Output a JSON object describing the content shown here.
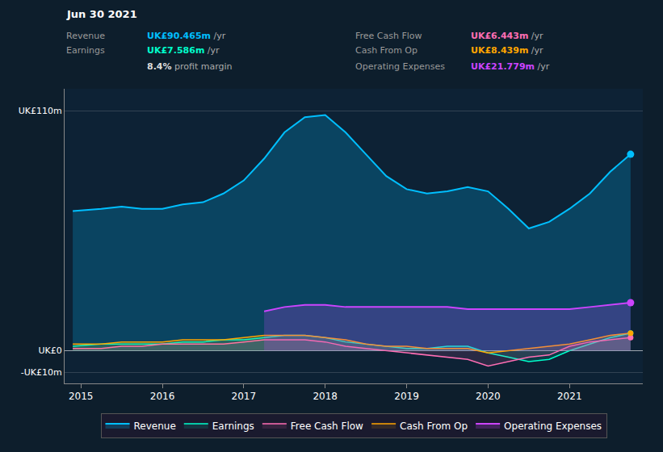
{
  "chart_data": {
    "type": "area",
    "x": [
      2014.9,
      2015.25,
      2015.5,
      2015.75,
      2016.0,
      2016.25,
      2016.5,
      2016.75,
      2017.0,
      2017.25,
      2017.5,
      2017.75,
      2018.0,
      2018.25,
      2018.5,
      2018.75,
      2019.0,
      2019.25,
      2019.5,
      2019.75,
      2020.0,
      2020.25,
      2020.5,
      2020.75,
      2021.0,
      2021.25,
      2021.5,
      2021.75
    ],
    "series": [
      {
        "name": "Revenue",
        "color": "#00bfff",
        "values": [
          64,
          65,
          66,
          65,
          65,
          67,
          68,
          72,
          78,
          88,
          100,
          107,
          108,
          100,
          90,
          80,
          74,
          72,
          73,
          75,
          73,
          65,
          56,
          59,
          65,
          72,
          82,
          90
        ]
      },
      {
        "name": "Earnings",
        "color": "#00ffcc",
        "values": [
          2,
          3,
          3,
          3,
          3,
          4,
          4,
          5,
          5,
          6,
          7,
          7,
          6,
          4,
          3,
          2,
          1,
          1,
          2,
          2,
          -1,
          -3,
          -5,
          -4,
          0,
          3,
          6,
          8
        ]
      },
      {
        "name": "Free Cash Flow",
        "color": "#ff6eb4",
        "values": [
          1,
          1,
          2,
          2,
          3,
          3,
          3,
          3,
          4,
          5,
          5,
          5,
          4,
          2,
          1,
          0,
          -1,
          -2,
          -3,
          -4,
          -7,
          -5,
          -3,
          -2,
          2,
          4,
          5,
          6
        ]
      },
      {
        "name": "Cash From Op",
        "color": "#ffa500",
        "values": [
          3,
          3,
          4,
          4,
          4,
          5,
          5,
          5,
          6,
          7,
          7,
          7,
          6,
          5,
          3,
          2,
          2,
          1,
          1,
          1,
          -1,
          0,
          1,
          2,
          3,
          5,
          7,
          8
        ]
      },
      {
        "name": "Operating Expenses",
        "color": "#cc44ff",
        "values": [
          null,
          null,
          null,
          null,
          null,
          null,
          null,
          null,
          null,
          18,
          20,
          21,
          21,
          20,
          20,
          20,
          20,
          20,
          20,
          19,
          19,
          19,
          19,
          19,
          19,
          20,
          21,
          22
        ]
      }
    ],
    "xlim": [
      2014.8,
      2021.9
    ],
    "xticks": [
      2015,
      2016,
      2017,
      2018,
      2019,
      2020,
      2021
    ],
    "ylim": [
      -15,
      120
    ],
    "yticks": [
      {
        "value": -10,
        "label": "-UK£10m"
      },
      {
        "value": 0,
        "label": "UK£0"
      },
      {
        "value": 110,
        "label": "UK£110m"
      }
    ],
    "grid": true,
    "legend": "bottom",
    "annotations": [
      {
        "text": "Jun 30 2021"
      },
      {
        "label": "Revenue",
        "text": "UK£90.465m",
        "color": "#00bfff",
        "suffix": " /yr"
      },
      {
        "label": "Earnings",
        "text": "UK£7.586m",
        "color": "#00ffcc",
        "suffix": " /yr"
      },
      {
        "text": "8.4%",
        "color": "#dddddd",
        "suffix": " profit margin"
      },
      {
        "label": "Free Cash Flow",
        "text": "UK£6.443m",
        "color": "#ff6eb4",
        "suffix": " /yr"
      },
      {
        "label": "Cash From Op",
        "text": "UK£8.439m",
        "color": "#ffa500",
        "suffix": " /yr"
      },
      {
        "label": "Operating Expenses",
        "text": "UK£21.779m",
        "color": "#cc44ff",
        "suffix": " /yr"
      }
    ]
  }
}
